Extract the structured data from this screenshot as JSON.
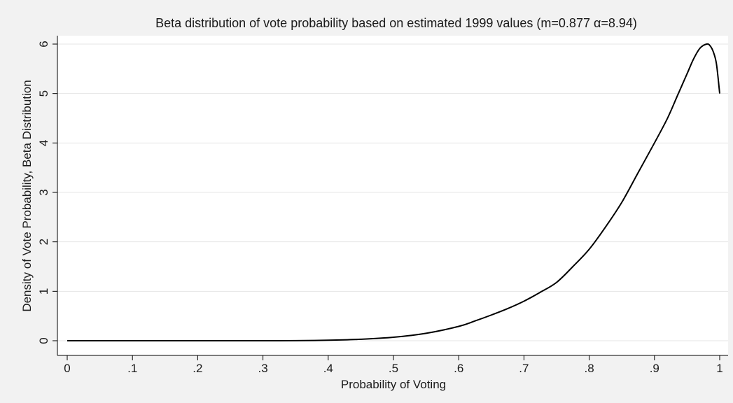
{
  "chart_data": {
    "type": "line",
    "title": "Beta distribution of vote probability based on estimated 1999 values (m=0.877  α=8.94)",
    "xlabel": "Probability of Voting",
    "ylabel": "Density of Vote Probability, Beta Distribution",
    "xlim": [
      0,
      1
    ],
    "ylim": [
      0,
      6
    ],
    "xticks": [
      0,
      0.1,
      0.2,
      0.3,
      0.4,
      0.5,
      0.6,
      0.7,
      0.8,
      0.9,
      1
    ],
    "xtick_labels": [
      "0",
      ".1",
      ".2",
      ".3",
      ".4",
      ".5",
      ".6",
      ".7",
      ".8",
      ".9",
      "1"
    ],
    "yticks": [
      0,
      1,
      2,
      3,
      4,
      5,
      6
    ],
    "ytick_labels": [
      "0",
      "1",
      "2",
      "3",
      "4",
      "5",
      "6"
    ],
    "grid": true,
    "series": [
      {
        "color": "#000000",
        "x": [
          0,
          0.05,
          0.1,
          0.15,
          0.2,
          0.25,
          0.3,
          0.35,
          0.4,
          0.45,
          0.5,
          0.55,
          0.6,
          0.625,
          0.65,
          0.675,
          0.7,
          0.725,
          0.75,
          0.775,
          0.8,
          0.825,
          0.85,
          0.875,
          0.9,
          0.92,
          0.935,
          0.95,
          0.96,
          0.97,
          0.98,
          0.985,
          0.99,
          0.995,
          1
        ],
        "y": [
          0,
          0,
          0,
          0,
          0,
          0,
          0,
          0.001,
          0.01,
          0.03,
          0.07,
          0.15,
          0.29,
          0.4,
          0.52,
          0.65,
          0.8,
          0.98,
          1.18,
          1.5,
          1.85,
          2.3,
          2.8,
          3.4,
          4.0,
          4.5,
          4.95,
          5.4,
          5.7,
          5.92,
          6.0,
          5.97,
          5.85,
          5.6,
          5.0
        ]
      }
    ]
  }
}
